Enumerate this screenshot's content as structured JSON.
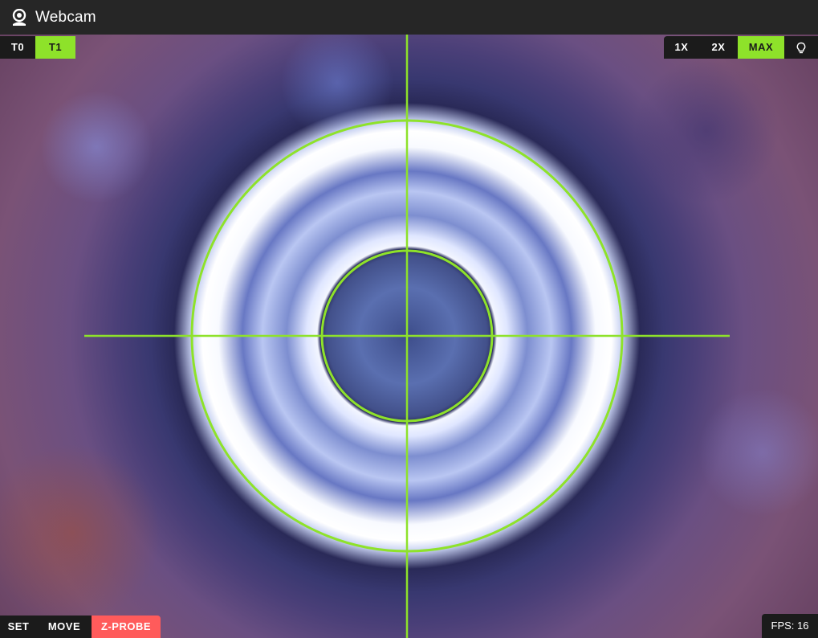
{
  "header": {
    "title": "Webcam",
    "icon": "webcam-icon"
  },
  "tools": [
    {
      "label": "T0",
      "active": false
    },
    {
      "label": "T1",
      "active": true
    }
  ],
  "zoom": [
    {
      "label": "1X",
      "active": false
    },
    {
      "label": "2X",
      "active": false
    },
    {
      "label": "MAX",
      "active": true
    }
  ],
  "light": {
    "icon": "lightbulb-icon"
  },
  "modes": [
    {
      "label": "SET",
      "active": false
    },
    {
      "label": "MOVE",
      "active": false
    },
    {
      "label": "Z-PROBE",
      "active": true
    }
  ],
  "status": {
    "fps_label": "FPS: 16"
  },
  "colors": {
    "accent": "#8ee22a",
    "danger": "#ff5b5b",
    "bar": "#1b1b1b",
    "header": "#262626"
  }
}
